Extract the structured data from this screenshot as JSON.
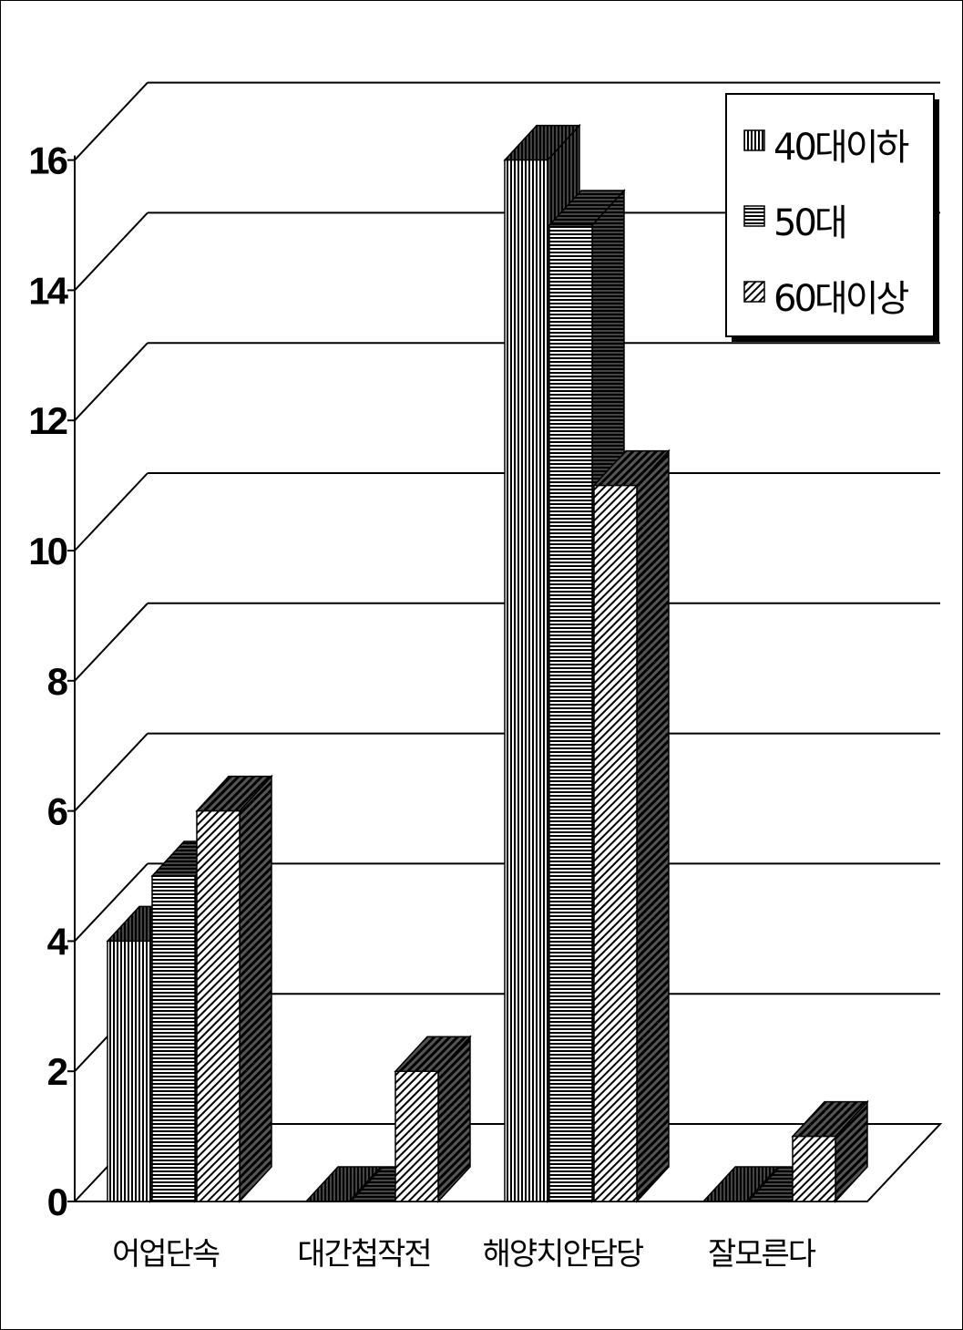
{
  "chart_data": {
    "type": "bar",
    "title": "",
    "xlabel": "",
    "ylabel": "",
    "ylim": [
      0,
      16
    ],
    "yticks": [
      "0",
      "2",
      "4",
      "6",
      "8",
      "10",
      "12",
      "14",
      "16"
    ],
    "categories": [
      "어업단속",
      "대간첩작전",
      "해양치안담당",
      "잘모른다"
    ],
    "series": [
      {
        "name": "40대이하",
        "values": [
          4,
          0,
          16,
          0
        ]
      },
      {
        "name": "50대",
        "values": [
          5,
          0,
          15,
          0
        ]
      },
      {
        "name": "60대이상",
        "values": [
          6,
          2,
          11,
          1
        ]
      }
    ],
    "grid": true,
    "legend_position": "top-right",
    "style": "3d-clustered-column",
    "colors": {
      "front": "#ffffff",
      "side": "#000000",
      "line": "#000000"
    }
  }
}
